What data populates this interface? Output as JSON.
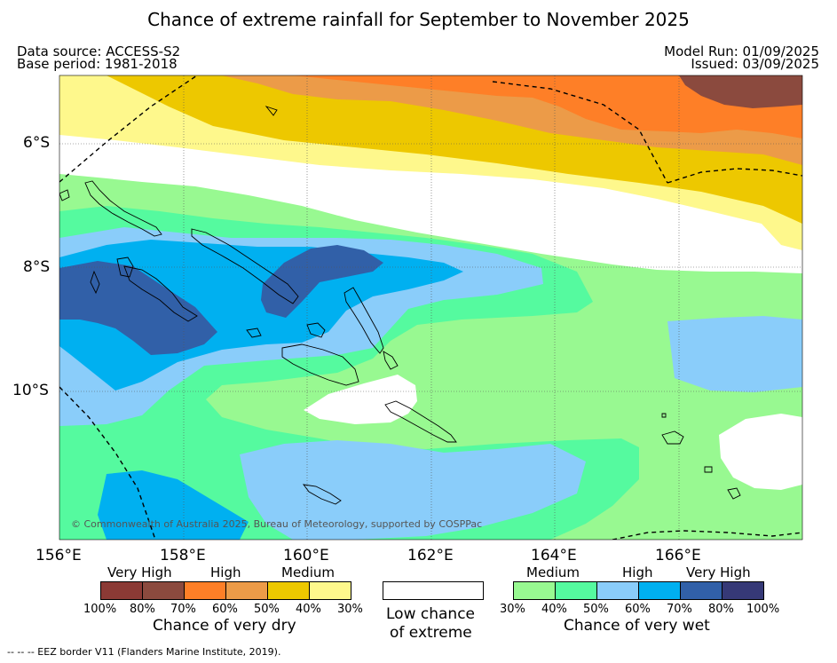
{
  "title": "Chance of extreme rainfall for September to November 2025",
  "meta": {
    "data_source": "Data source: ACCESS-S2",
    "base_period": "Base period: 1981-2018",
    "model_run": "Model Run: 01/09/2025",
    "issued": "Issued: 03/09/2025"
  },
  "map": {
    "copyright": "© Commonwealth of Australia 2025, Bureau of Meteorology, supported by COSPPac",
    "lon_labels": [
      "156°E",
      "158°E",
      "160°E",
      "162°E",
      "164°E",
      "166°E"
    ],
    "lat_labels": [
      "6°S",
      "8°S",
      "10°S"
    ]
  },
  "legend": {
    "dry": {
      "caption": "Chance of very dry",
      "categories": [
        "Very High",
        "High",
        "Medium"
      ],
      "ticks": [
        "100%",
        "80%",
        "70%",
        "60%",
        "50%",
        "40%",
        "30%"
      ],
      "colors": [
        "#8b3a35",
        "#8b4a3e",
        "#fe7f27",
        "#ec9b48",
        "#edc800",
        "#fef88c"
      ]
    },
    "low": {
      "line1": "Low chance",
      "line2": "of extreme"
    },
    "wet": {
      "caption": "Chance of very wet",
      "categories": [
        "Medium",
        "High",
        "Very High"
      ],
      "ticks": [
        "30%",
        "40%",
        "50%",
        "60%",
        "70%",
        "80%",
        "100%"
      ],
      "colors": [
        "#98f991",
        "#55fa9f",
        "#8acdfa",
        "#00b0f0",
        "#3160a8",
        "#363977"
      ]
    }
  },
  "footer": "--  --  -- EEZ border V11 (Flanders Marine Institute, 2019)."
}
